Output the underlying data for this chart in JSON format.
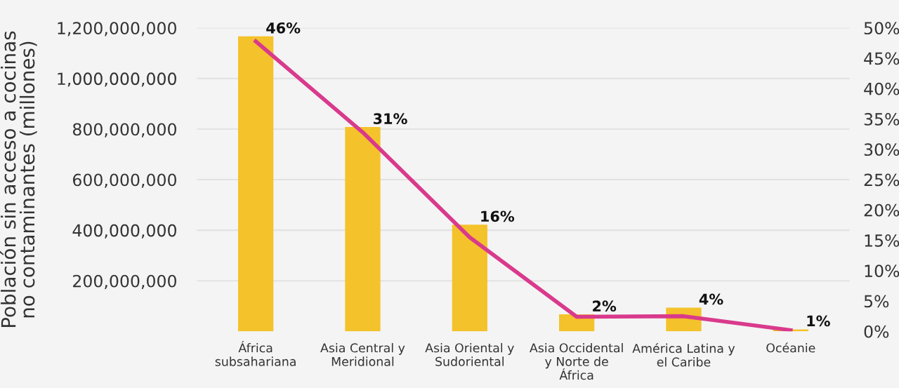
{
  "chart_data": {
    "type": "bar",
    "categories": [
      "África\nsubsahariana",
      "Asia Central y\nMeridional",
      "Asia Oriental y\nSudoriental",
      "Asia Occidental\ny Norte de\nÁfrica",
      "América Latina y\nel Caribe",
      "Océanie"
    ],
    "ylabel": "Población sin acceso a cocinas\nno contaminantes (millones)",
    "series": [
      {
        "color": "#f4c22a",
        "values": [
          1167000000,
          808000000,
          422000000,
          67000000,
          94000000,
          8000000
        ]
      },
      {
        "type": "line",
        "axis": "y2",
        "color": "#d93a8c",
        "values": [
          47.8,
          32.8,
          15.5,
          2.4,
          2.5,
          0.2
        ]
      }
    ],
    "annotations": [
      {
        "text": "46%",
        "x": "África\nsubsahariana",
        "y": 1167000000
      },
      {
        "text": "31%",
        "x": "Asia Central y\nMeridional",
        "y": 808000000
      },
      {
        "text": "16%",
        "x": "Asia Oriental y\nSudoriental",
        "y": 422000000
      },
      {
        "text": "2%",
        "x": "Asia Occidental\ny Norte de\nÁfrica",
        "y": 67000000
      },
      {
        "text": "4%",
        "x": "América Latina y\nel Caribe",
        "y": 94000000
      },
      {
        "text": "1%",
        "x": "Océanie",
        "y": 8000000
      }
    ],
    "ylim": [
      0,
      1200000000
    ],
    "yticks": [
      {
        "value": 200000000,
        "label": "200,000,000"
      },
      {
        "value": 400000000,
        "label": "400,000,000"
      },
      {
        "value": 600000000,
        "label": "600,000,000"
      },
      {
        "value": 800000000,
        "label": "800,000,000"
      },
      {
        "value": 1000000000,
        "label": "1,000,000,000"
      },
      {
        "value": 1200000000,
        "label": "1,200,000,000"
      }
    ],
    "y2lim": [
      0,
      50
    ],
    "y2ticks": [
      {
        "value": 0,
        "label": "0%"
      },
      {
        "value": 5,
        "label": "5%"
      },
      {
        "value": 10,
        "label": "10%"
      },
      {
        "value": 15,
        "label": "15%"
      },
      {
        "value": 20,
        "label": "20%"
      },
      {
        "value": 25,
        "label": "25%"
      },
      {
        "value": 30,
        "label": "30%"
      },
      {
        "value": 35,
        "label": "35%"
      },
      {
        "value": 40,
        "label": "40%"
      },
      {
        "value": 45,
        "label": "45%"
      },
      {
        "value": 50,
        "label": "50%"
      }
    ],
    "grid": "y",
    "legend": false,
    "marker": "none",
    "line_style": "solid"
  }
}
